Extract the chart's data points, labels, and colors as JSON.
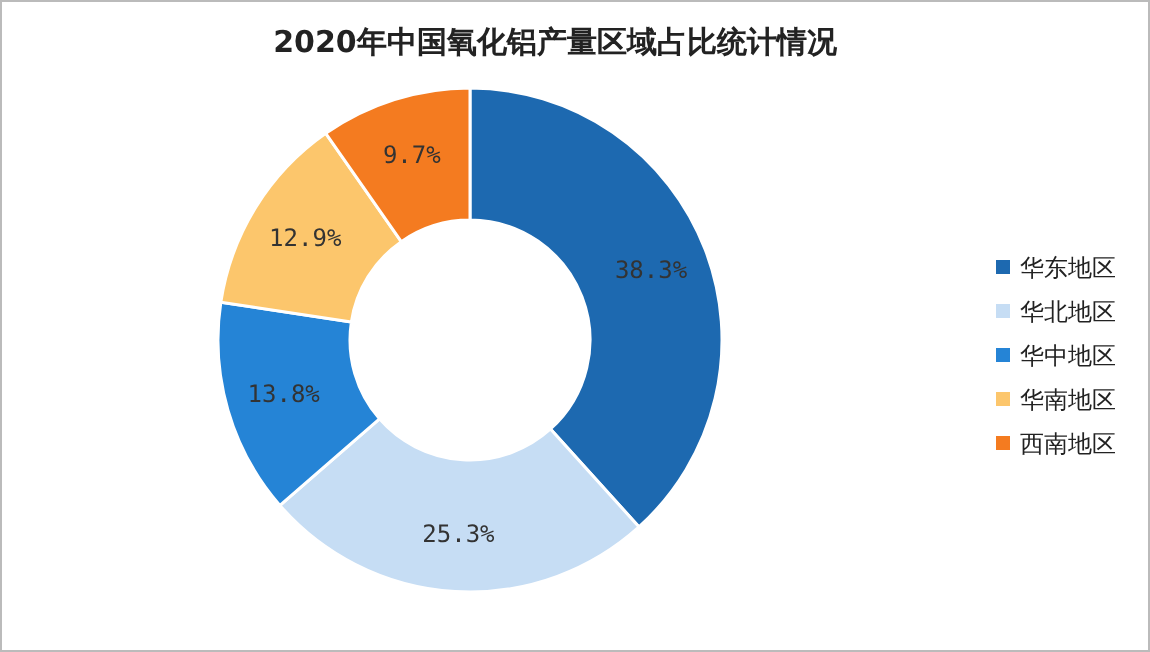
{
  "chart_data": {
    "type": "donut",
    "title": "2020年中国氧化铝产量区域占比统计情况",
    "categories": [
      "华东地区",
      "华北地区",
      "华中地区",
      "华南地区",
      "西南地区"
    ],
    "values": [
      38.3,
      25.3,
      13.8,
      12.9,
      9.7
    ],
    "colors": [
      "#1d69b0",
      "#c6ddf4",
      "#2584d6",
      "#fcc66c",
      "#f47b20"
    ],
    "value_labels": [
      "38.3%",
      "25.3%",
      "13.8%",
      "12.9%",
      "9.7%"
    ],
    "legend": "right"
  }
}
